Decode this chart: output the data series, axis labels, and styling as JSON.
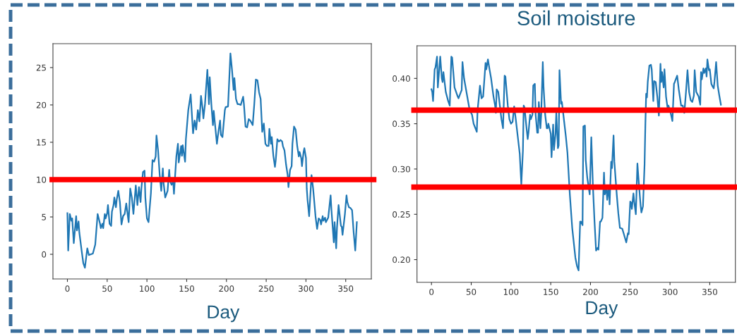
{
  "chart_data": [
    {
      "type": "line",
      "xlabel": "Day",
      "color": "#1f77b4",
      "x": [
        0,
        1,
        3,
        5,
        6,
        8,
        11,
        12,
        14,
        15,
        18,
        20,
        22,
        25,
        27,
        32,
        35,
        38,
        41,
        42,
        44,
        45,
        47,
        48,
        50,
        51,
        53,
        55,
        56,
        58,
        59,
        61,
        62,
        64,
        66,
        68,
        70,
        72,
        74,
        76,
        77,
        79,
        81,
        83,
        86,
        88,
        90,
        92,
        93,
        95,
        97,
        98,
        100,
        102,
        105,
        107,
        109,
        111,
        112,
        114,
        116,
        118,
        120,
        121,
        123,
        126,
        128,
        129,
        131,
        133,
        134,
        137,
        139,
        140,
        143,
        144,
        145,
        148,
        149,
        152,
        155,
        158,
        160,
        162,
        164,
        166,
        168,
        170,
        171,
        173,
        176,
        178,
        179,
        181,
        183,
        184,
        186,
        188,
        190,
        192,
        193,
        195,
        198,
        199,
        202,
        205,
        207,
        209,
        210,
        212,
        214,
        216,
        218,
        221,
        222,
        224,
        226,
        228,
        230,
        233,
        235,
        237,
        239,
        241,
        243,
        245,
        247,
        249,
        251,
        253,
        254,
        256,
        257,
        259,
        261,
        262,
        264,
        266,
        268,
        270,
        271,
        273,
        275,
        277,
        278,
        280,
        282,
        283,
        285,
        287,
        289,
        291,
        292,
        294,
        295,
        297,
        298,
        300,
        301,
        302,
        304,
        306,
        307,
        309,
        310,
        312,
        314,
        316,
        318,
        319,
        321,
        322,
        324,
        325,
        328,
        331,
        332,
        335,
        336,
        338,
        339,
        341,
        344,
        345,
        346,
        349,
        351,
        352,
        354,
        356,
        358,
        360,
        362,
        364
      ],
      "values": [
        5.5,
        0.5,
        5.4,
        4.5,
        4.8,
        1.5,
        5.1,
        3.2,
        4.4,
        2.9,
        0.4,
        -1.2,
        -1.8,
        0.8,
        -0.1,
        0.1,
        1.3,
        5.4,
        4.1,
        3.5,
        4.1,
        3.5,
        5.4,
        4.8,
        5.5,
        6.6,
        4.1,
        3.8,
        5.7,
        6.6,
        7.6,
        6.3,
        7.3,
        8.5,
        7.0,
        4.0,
        5.1,
        5.4,
        6.8,
        5.1,
        4.3,
        8.8,
        7.6,
        5.4,
        9.2,
        6.6,
        9.0,
        7.0,
        8.8,
        11.0,
        11.2,
        7.6,
        4.8,
        4.3,
        8.2,
        12.6,
        12.4,
        13.1,
        15.9,
        13.9,
        10.7,
        8.5,
        11.5,
        9.5,
        7.6,
        8.5,
        11.3,
        9.8,
        9.3,
        9.8,
        8.1,
        13.1,
        14.8,
        12.3,
        14.5,
        13.2,
        14.6,
        12.4,
        15.4,
        19.3,
        21.4,
        16.2,
        17.9,
        16.7,
        19.3,
        17.8,
        21.2,
        19.5,
        18.2,
        20.1,
        24.7,
        20.1,
        23.7,
        20.1,
        17.3,
        19.2,
        17.0,
        14.8,
        16.5,
        17.9,
        16.0,
        15.7,
        19.3,
        19.7,
        19.8,
        26.9,
        24.7,
        22.0,
        23.6,
        20.8,
        20.1,
        20.1,
        20.0,
        21.1,
        20.1,
        17.1,
        17.0,
        18.1,
        17.9,
        17.3,
        20.1,
        23.4,
        23.3,
        21.7,
        20.8,
        16.4,
        17.5,
        14.8,
        14.5,
        14.5,
        16.8,
        14.8,
        15.7,
        13.2,
        11.7,
        12.6,
        15.4,
        15.1,
        15.3,
        15.1,
        14.5,
        13.9,
        12.0,
        10.6,
        9.0,
        11.3,
        11.8,
        14.8,
        17.1,
        16.7,
        14.5,
        13.1,
        13.7,
        12.9,
        11.8,
        13.7,
        14.2,
        12.9,
        8.8,
        7.3,
        5.1,
        8.8,
        10.6,
        8.8,
        7.6,
        5.1,
        3.4,
        4.8,
        4.6,
        4.0,
        5.1,
        4.5,
        4.9,
        4.3,
        4.9,
        7.9,
        6.0,
        1.6,
        4.3,
        0.8,
        3.5,
        6.6,
        3.8,
        3.7,
        2.6,
        5.4,
        7.9,
        7.0,
        6.3,
        6.2,
        5.9,
        2.9,
        0.5,
        4.3
      ],
      "xlim": [
        -18.2,
        382.2
      ],
      "xticks": [
        0,
        50,
        100,
        150,
        200,
        250,
        300,
        350
      ],
      "ylim": [
        -3.3,
        28.2
      ],
      "yticks": [
        0,
        5,
        10,
        15,
        20,
        25
      ],
      "ref_lines": [
        {
          "axis": "y",
          "value": 10,
          "color": "#ff0000"
        }
      ]
    },
    {
      "type": "line",
      "title": "Soil moisture",
      "xlabel": "Day",
      "color": "#1f77b4",
      "x": [
        0,
        1,
        2,
        4,
        5,
        7,
        8,
        11,
        13,
        14,
        15,
        18,
        21,
        23,
        25,
        26,
        29,
        33,
        34,
        37,
        38,
        39,
        41,
        45,
        48,
        51,
        53,
        57,
        58,
        61,
        63,
        65,
        68,
        69,
        71,
        73,
        75,
        78,
        80,
        81,
        82,
        84,
        86,
        88,
        90,
        92,
        93,
        96,
        98,
        100,
        102,
        104,
        106,
        111,
        113,
        115,
        116,
        117,
        119,
        121,
        122,
        124,
        125,
        127,
        128,
        130,
        131,
        133,
        134,
        135,
        137,
        138,
        140,
        141,
        143,
        145,
        146,
        147,
        150,
        151,
        153,
        154,
        156,
        157,
        159,
        160,
        161,
        163,
        164,
        166,
        169,
        171,
        174,
        177,
        181,
        183,
        185,
        187,
        188,
        190,
        191,
        193,
        194,
        196,
        199,
        201,
        203,
        205,
        207,
        209,
        210,
        212,
        213,
        215,
        217,
        218,
        220,
        221,
        223,
        224,
        226,
        227,
        229,
        230,
        233,
        235,
        237,
        240,
        242,
        245,
        247,
        248,
        250,
        251,
        252,
        254,
        255,
        257,
        259,
        261,
        263,
        264,
        266,
        268,
        269,
        270,
        271,
        272,
        274,
        276,
        277,
        279,
        280,
        282,
        284,
        286,
        288,
        289,
        290,
        292,
        293,
        295,
        297,
        298,
        300,
        303,
        305,
        306,
        309,
        311,
        314,
        316,
        318,
        320,
        322,
        324,
        326,
        328,
        330,
        331,
        333,
        336,
        338,
        339,
        340,
        342,
        343,
        345,
        346,
        347,
        349,
        350,
        352,
        353,
        355,
        356,
        358,
        360,
        362,
        364
      ],
      "values": [
        0.388,
        0.385,
        0.375,
        0.41,
        0.412,
        0.424,
        0.39,
        0.424,
        0.4,
        0.396,
        0.407,
        0.385,
        0.375,
        0.37,
        0.424,
        0.423,
        0.39,
        0.38,
        0.378,
        0.385,
        0.387,
        0.418,
        0.4,
        0.38,
        0.365,
        0.36,
        0.35,
        0.341,
        0.365,
        0.392,
        0.378,
        0.38,
        0.417,
        0.41,
        0.421,
        0.41,
        0.4,
        0.38,
        0.37,
        0.362,
        0.388,
        0.385,
        0.37,
        0.355,
        0.345,
        0.403,
        0.402,
        0.37,
        0.355,
        0.35,
        0.352,
        0.369,
        0.355,
        0.317,
        0.283,
        0.32,
        0.37,
        0.368,
        0.35,
        0.333,
        0.34,
        0.36,
        0.355,
        0.36,
        0.392,
        0.394,
        0.36,
        0.34,
        0.34,
        0.374,
        0.345,
        0.36,
        0.418,
        0.39,
        0.36,
        0.345,
        0.345,
        0.35,
        0.339,
        0.313,
        0.349,
        0.321,
        0.339,
        0.362,
        0.323,
        0.326,
        0.409,
        0.372,
        0.374,
        0.359,
        0.336,
        0.318,
        0.272,
        0.235,
        0.202,
        0.193,
        0.188,
        0.242,
        0.242,
        0.238,
        0.347,
        0.348,
        0.31,
        0.29,
        0.272,
        0.335,
        0.282,
        0.243,
        0.21,
        0.213,
        0.211,
        0.242,
        0.242,
        0.246,
        0.296,
        0.272,
        0.279,
        0.266,
        0.282,
        0.261,
        0.308,
        0.301,
        0.337,
        0.308,
        0.272,
        0.251,
        0.235,
        0.234,
        0.228,
        0.219,
        0.229,
        0.228,
        0.264,
        0.263,
        0.256,
        0.273,
        0.264,
        0.25,
        0.306,
        0.282,
        0.26,
        0.252,
        0.259,
        0.305,
        0.349,
        0.383,
        0.379,
        0.396,
        0.414,
        0.415,
        0.41,
        0.375,
        0.397,
        0.396,
        0.38,
        0.359,
        0.416,
        0.396,
        0.407,
        0.39,
        0.41,
        0.38,
        0.367,
        0.37,
        0.365,
        0.353,
        0.394,
        0.396,
        0.403,
        0.388,
        0.37,
        0.37,
        0.362,
        0.384,
        0.409,
        0.385,
        0.376,
        0.374,
        0.381,
        0.409,
        0.385,
        0.38,
        0.371,
        0.407,
        0.399,
        0.411,
        0.406,
        0.411,
        0.402,
        0.421,
        0.409,
        0.41,
        0.394,
        0.392,
        0.389,
        0.397,
        0.418,
        0.392,
        0.381,
        0.371
      ],
      "xlim": [
        -18.2,
        382.2
      ],
      "xticks": [
        0,
        50,
        100,
        150,
        200,
        250,
        300,
        350
      ],
      "ylim": [
        0.175,
        0.436
      ],
      "yticks": [
        {
          "value": 0.2,
          "label": "0.20"
        },
        {
          "value": 0.25,
          "label": "0.25"
        },
        {
          "value": 0.3,
          "label": "0.30"
        },
        {
          "value": 0.35,
          "label": "0.35"
        },
        {
          "value": 0.4,
          "label": "0.40"
        }
      ],
      "ref_lines": [
        {
          "axis": "y",
          "value": 0.365,
          "color": "#ff0000"
        },
        {
          "axis": "y",
          "value": 0.28,
          "color": "#ff0000"
        }
      ]
    }
  ]
}
